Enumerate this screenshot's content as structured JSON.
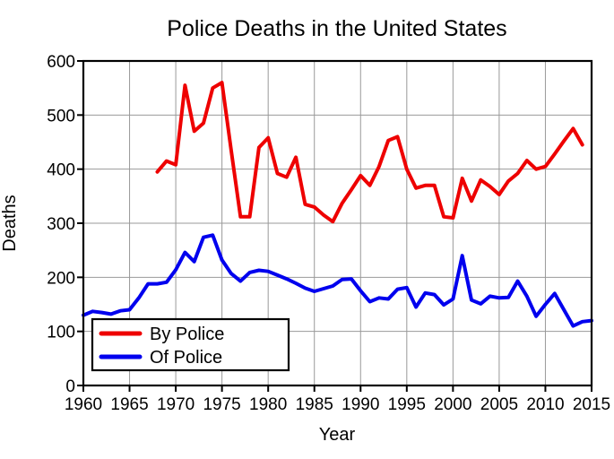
{
  "chart_data": {
    "type": "line",
    "title": "Police Deaths in the United States",
    "xlabel": "Year",
    "ylabel": "Deaths",
    "xlim": [
      1960,
      2015
    ],
    "ylim": [
      0,
      600
    ],
    "x_ticks": [
      1960,
      1965,
      1970,
      1975,
      1980,
      1985,
      1990,
      1995,
      2000,
      2005,
      2010,
      2015
    ],
    "y_ticks": [
      0,
      100,
      200,
      300,
      400,
      500,
      600
    ],
    "grid": true,
    "legend_position": "lower-left",
    "series": [
      {
        "name": "By Police",
        "color": "#ee0000",
        "start_year": 1968,
        "values": [
          395,
          415,
          408,
          555,
          470,
          485,
          550,
          560,
          435,
          312,
          312,
          440,
          458,
          392,
          385,
          422,
          335,
          330,
          315,
          303,
          337,
          362,
          388,
          370,
          405,
          453,
          460,
          400,
          365,
          370,
          370,
          312,
          310,
          383,
          341,
          380,
          368,
          353,
          378,
          392,
          416,
          400,
          405,
          428,
          452,
          475,
          445
        ]
      },
      {
        "name": "Of Police",
        "color": "#0000ee",
        "start_year": 1960,
        "values": [
          130,
          137,
          135,
          132,
          138,
          140,
          162,
          188,
          188,
          191,
          214,
          246,
          229,
          274,
          278,
          232,
          207,
          193,
          209,
          213,
          211,
          204,
          197,
          189,
          180,
          174,
          179,
          184,
          196,
          197,
          175,
          155,
          162,
          160,
          178,
          181,
          145,
          171,
          168,
          149,
          160,
          240,
          158,
          151,
          165,
          162,
          163,
          193,
          165,
          128,
          150,
          170,
          140,
          110,
          118,
          120
        ]
      }
    ],
    "colors": {
      "grid": "#999999",
      "frame": "#000000",
      "background": "#ffffff",
      "text": "#000000"
    }
  }
}
